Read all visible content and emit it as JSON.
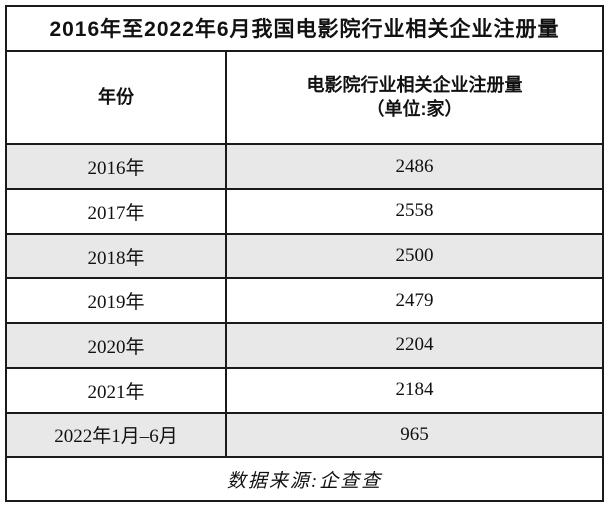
{
  "chart_data": {
    "type": "table",
    "title": "2016年至2022年6月我国电影院行业相关企业注册量",
    "columns": {
      "year": "年份",
      "value_line1": "电影院行业相关企业注册量",
      "value_line2": "（单位:家）"
    },
    "categories": [
      "2016年",
      "2017年",
      "2018年",
      "2019年",
      "2020年",
      "2021年",
      "2022年1月–6月"
    ],
    "values": [
      2486,
      2558,
      2500,
      2479,
      2204,
      2184,
      965
    ],
    "source": "数据来源:企查查",
    "layout": {
      "grid": "on",
      "alt_row_shading": true
    }
  },
  "colors": {
    "border": "#1a1a1a",
    "alt_row_background": "#e8e8e8",
    "background": "#ffffff",
    "text": "#111111"
  }
}
